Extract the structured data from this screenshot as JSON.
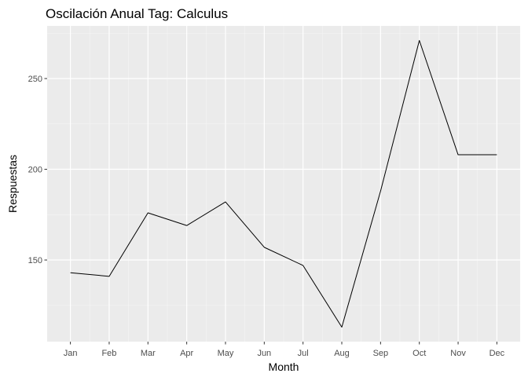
{
  "chart_data": {
    "type": "line",
    "title": "Oscilación Anual Tag: Calculus",
    "xlabel": "Month",
    "ylabel": "Respuestas",
    "categories": [
      "Jan",
      "Feb",
      "Mar",
      "Apr",
      "May",
      "Jun",
      "Jul",
      "Aug",
      "Sep",
      "Oct",
      "Nov",
      "Dec"
    ],
    "values": [
      143,
      141,
      176,
      169,
      182,
      157,
      147,
      113,
      188,
      271,
      208,
      208
    ],
    "ylim": [
      105,
      279
    ],
    "yticks": [
      150,
      200,
      250
    ],
    "grid": true,
    "legend": "none",
    "colors": {
      "panel_background": "#ebebeb",
      "grid_major": "#ffffff",
      "grid_minor": "#f5f5f5",
      "line": "#000000",
      "tick_text": "#4d4d4d",
      "tick_mark": "#333333"
    }
  }
}
